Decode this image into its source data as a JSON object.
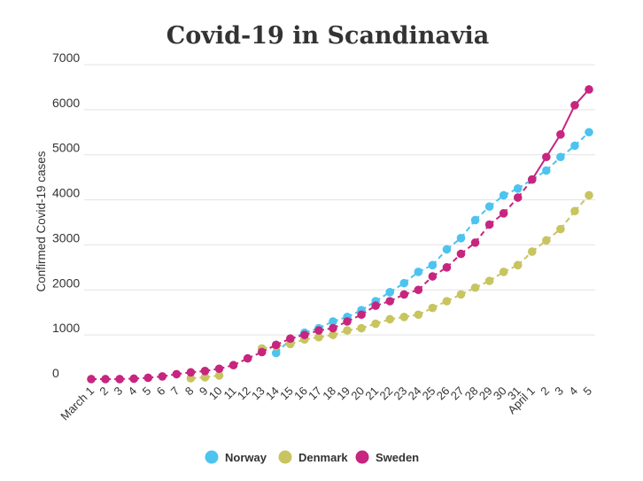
{
  "chart_data": {
    "type": "line",
    "title": "Covid-19 in Scandinavia",
    "xlabel": "",
    "ylabel": "Confirmed Covid-19 cases",
    "ylim": [
      0,
      7000
    ],
    "yticks": [
      0,
      1000,
      2000,
      3000,
      4000,
      5000,
      6000,
      7000
    ],
    "grid": true,
    "legend": "bottom",
    "categories": [
      "March 1",
      "2",
      "3",
      "4",
      "5",
      "6",
      "7",
      "8",
      "9",
      "10",
      "11",
      "12",
      "13",
      "14",
      "15",
      "16",
      "17",
      "18",
      "19",
      "20",
      "21",
      "22",
      "23",
      "24",
      "25",
      "26",
      "27",
      "28",
      "29",
      "30",
      "31",
      "April 1",
      "2",
      "3",
      "4",
      "5"
    ],
    "series": [
      {
        "name": "Norway",
        "color": "#4dc3ef",
        "dash": "dashed",
        "values": [
          null,
          null,
          null,
          null,
          null,
          null,
          null,
          null,
          null,
          null,
          null,
          null,
          null,
          600,
          900,
          1050,
          1150,
          1300,
          1400,
          1550,
          1750,
          1950,
          2150,
          2400,
          2550,
          2900,
          3150,
          3550,
          3850,
          4100,
          4250,
          4450,
          4650,
          4950,
          5200,
          5500
        ]
      },
      {
        "name": "Denmark",
        "color": "#c8c460",
        "dash": "dashed",
        "values": [
          null,
          null,
          null,
          null,
          null,
          null,
          null,
          40,
          60,
          100,
          null,
          null,
          700,
          750,
          800,
          900,
          950,
          1000,
          1100,
          1150,
          1250,
          1350,
          1400,
          1450,
          1600,
          1750,
          1900,
          2050,
          2200,
          2400,
          2550,
          2850,
          3100,
          3350,
          3750,
          4100
        ]
      },
      {
        "name": "Sweden",
        "color": "#c7257f",
        "dash": "dashed-then-solid",
        "solid_from": "April 1",
        "values": [
          20,
          20,
          20,
          30,
          50,
          80,
          130,
          170,
          200,
          250,
          330,
          480,
          620,
          780,
          920,
          1000,
          1100,
          1150,
          1300,
          1450,
          1650,
          1750,
          1900,
          2000,
          2300,
          2500,
          2800,
          3050,
          3450,
          3700,
          4050,
          4450,
          4950,
          5450,
          6100,
          6450
        ]
      }
    ]
  }
}
